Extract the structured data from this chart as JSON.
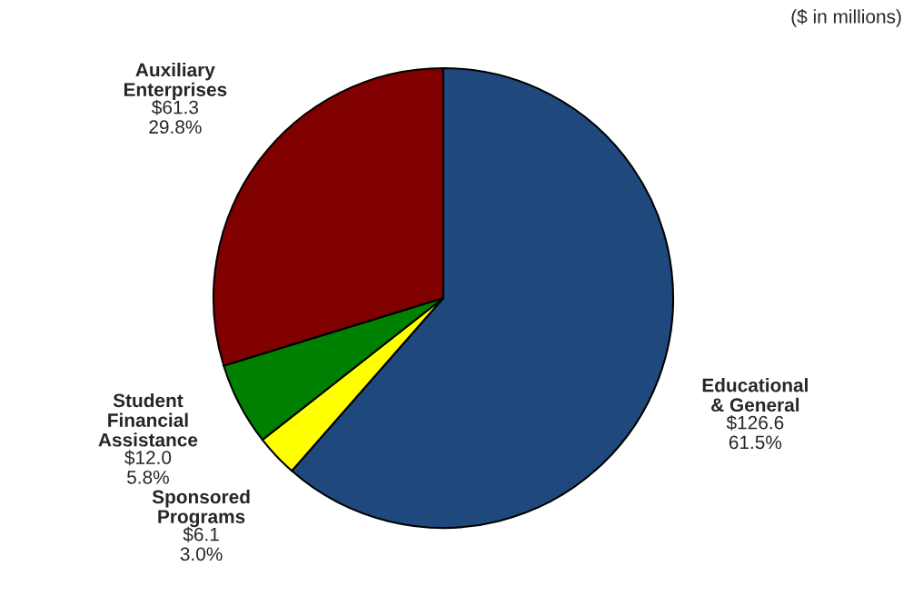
{
  "chart_data": {
    "type": "pie",
    "subtitle": "($ in millions)",
    "categories": [
      "Educational\n& General",
      "Sponsored\nPrograms",
      "Student\nFinancial\nAssistance",
      "Auxiliary\nEnterprises"
    ],
    "values": [
      126.6,
      6.1,
      12.0,
      61.3
    ],
    "value_labels": [
      "$126.6\n61.5%",
      "$6.1\n3.0%",
      "$12.0\n5.8%",
      "$61.3\n29.8%"
    ],
    "colors": [
      "#1f497d",
      "#ffff00",
      "#008000",
      "#800000"
    ]
  }
}
